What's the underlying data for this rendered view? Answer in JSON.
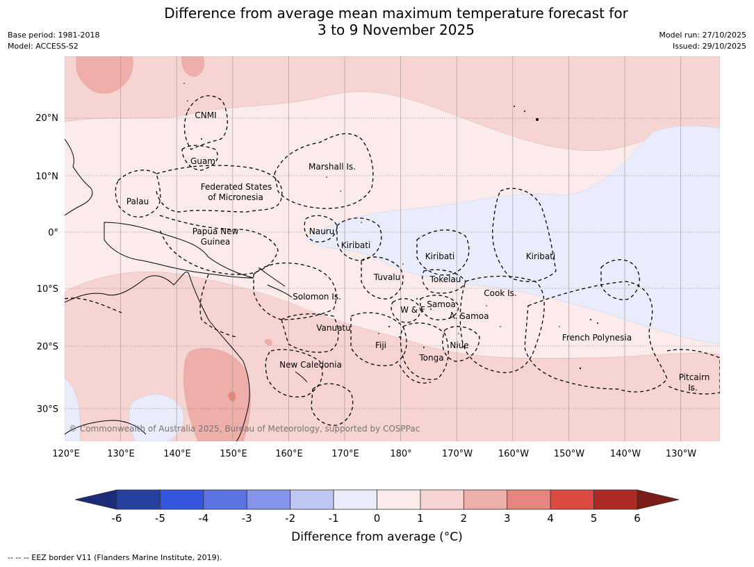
{
  "title_line1": "Difference from average mean maximum temperature forecast for",
  "title_line2": "3 to 9 November 2025",
  "base_period": "Base period: 1981-2018",
  "model": "Model: ACCESS-S2",
  "model_run": "Model run: 27/10/2025",
  "issued": "Issued: 29/10/2025",
  "lon_labels": [
    "120°E",
    "130°E",
    "140°E",
    "150°E",
    "160°E",
    "170°E",
    "180°",
    "170°W",
    "160°W",
    "150°W",
    "140°W",
    "130°W"
  ],
  "lat_labels": [
    "20°N",
    "10°N",
    "0°",
    "10°S",
    "20°S",
    "30°S"
  ],
  "places": [
    {
      "name": "CNMI"
    },
    {
      "name": "Guam"
    },
    {
      "name": "Marshall Is."
    },
    {
      "name": "Federated States"
    },
    {
      "name": "of Micronesia"
    },
    {
      "name": "Palau"
    },
    {
      "name": "Papua New"
    },
    {
      "name": "Guinea"
    },
    {
      "name": "Nauru"
    },
    {
      "name": "Kiribati"
    },
    {
      "name": "Kiribati"
    },
    {
      "name": "Kiribati"
    },
    {
      "name": "Tuvalu"
    },
    {
      "name": "Tokelau"
    },
    {
      "name": "Cook Is."
    },
    {
      "name": "Solomon Is."
    },
    {
      "name": "Samoa"
    },
    {
      "name": "W & F"
    },
    {
      "name": "A. Samoa"
    },
    {
      "name": "Vanuatu"
    },
    {
      "name": "Fiji"
    },
    {
      "name": "Niue"
    },
    {
      "name": "French Polynesia"
    },
    {
      "name": "Tonga"
    },
    {
      "name": "New Caledonia"
    },
    {
      "name": "Pitcairn"
    },
    {
      "name": "Is."
    }
  ],
  "copyright": "© Commonwealth of Australia 2025, Bureau of Meteorology, supported by COSPPac",
  "colorbar": {
    "ticks": [
      "-6",
      "-5",
      "-4",
      "-3",
      "-2",
      "-1",
      "0",
      "1",
      "2",
      "3",
      "4",
      "5",
      "6"
    ],
    "colors": [
      "#26409f",
      "#3355e0",
      "#5b73e3",
      "#8494ea",
      "#bec6f3",
      "#e8ecfb",
      "#fbeceb",
      "#f6d4d2",
      "#eeaeaa",
      "#e6847e",
      "#dc4940",
      "#ad2a22"
    ],
    "under_color": "#1c2a78",
    "over_color": "#7a1d19",
    "label": "Difference from average (°C)"
  },
  "footnote": "--  --  -- EEZ border V11 (Flanders Marine Institute, 2019)."
}
